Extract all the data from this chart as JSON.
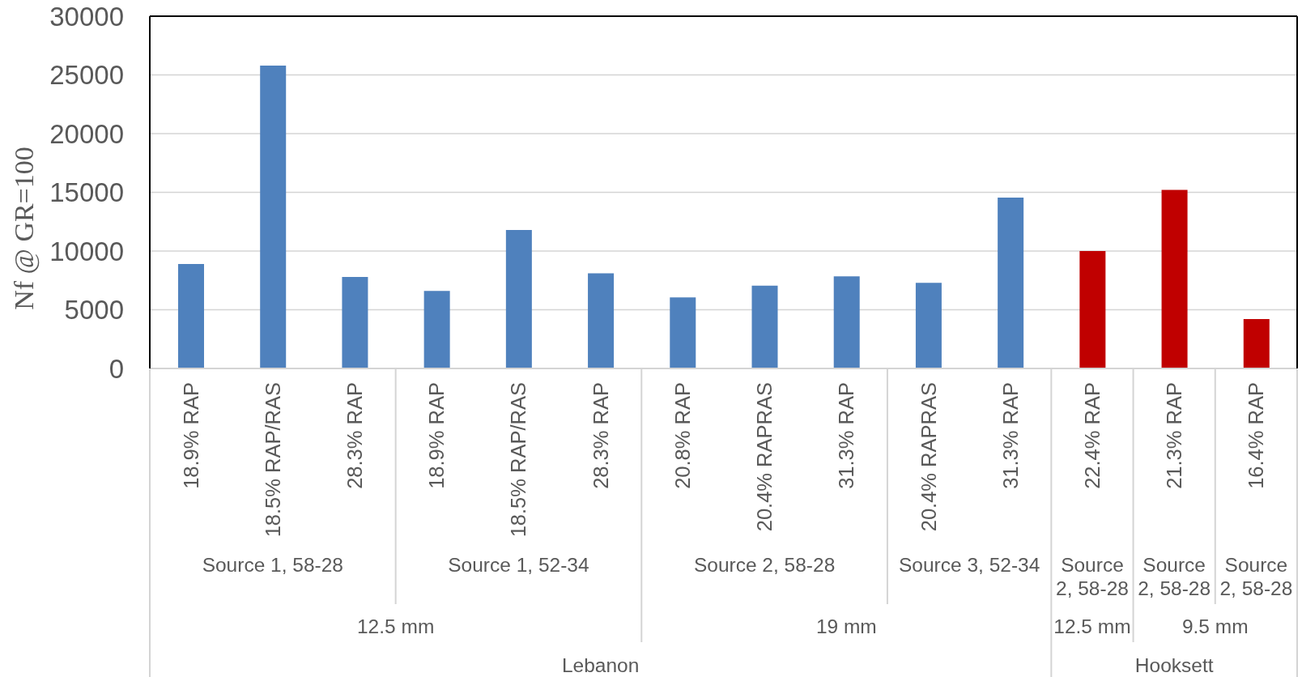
{
  "chart_data": {
    "type": "bar",
    "ylabel": "Nf @ GR=100",
    "categories": [
      "18.9% RAP",
      "18.5% RAP/RAS",
      "28.3% RAP",
      "18.9% RAP",
      "18.5% RAP/RAS",
      "28.3% RAP",
      "20.8% RAP",
      "20.4% RAPRAS",
      "31.3% RAP",
      "20.4% RAPRAS",
      "31.3% RAP",
      "22.4% RAP",
      "21.3% RAP",
      "16.4% RAP"
    ],
    "values": [
      8900,
      25800,
      7800,
      6600,
      11800,
      8100,
      6050,
      7050,
      7850,
      7300,
      14550,
      10000,
      15200,
      4200
    ],
    "colors": [
      "#4f81bd",
      "#4f81bd",
      "#4f81bd",
      "#4f81bd",
      "#4f81bd",
      "#4f81bd",
      "#4f81bd",
      "#4f81bd",
      "#4f81bd",
      "#4f81bd",
      "#4f81bd",
      "#c00000",
      "#c00000",
      "#c00000"
    ],
    "ylim": [
      0,
      30000
    ],
    "yticks": [
      0,
      5000,
      10000,
      15000,
      20000,
      25000,
      30000
    ],
    "grid": "y",
    "annotations": [
      "Source 1, 58-28",
      "Source 1, 52-34",
      "Source 2, 58-28",
      "Source 3, 52-34",
      "Source 2, 58-28",
      "Source 2, 58-28",
      "Source 2, 58-28",
      "12.5 mm",
      "19 mm",
      "12.5 mm",
      "9.5 mm",
      "Lebanon",
      "Hooksett"
    ]
  }
}
